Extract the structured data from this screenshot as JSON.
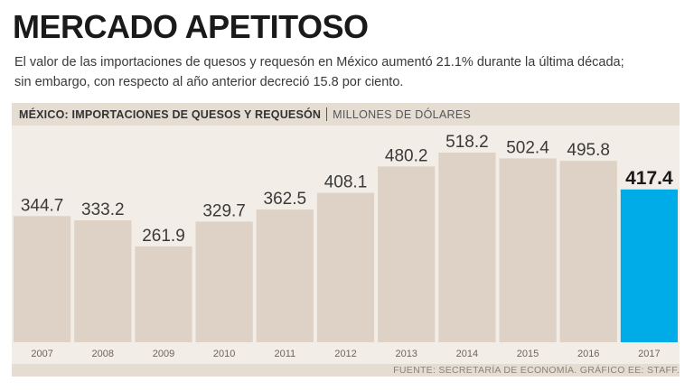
{
  "header": {
    "title": "MERCADO APETITOSO",
    "subtitle_line1": "El valor de las importaciones de quesos y requesón en México aumentó 21.1% durante la última década;",
    "subtitle_line2": "sin embargo, con respecto al año anterior decreció 15.8 por ciento."
  },
  "chart_header": {
    "title": "MÉXICO: IMPORTACIONES DE QUESOS Y REQUESÓN",
    "units": "MILLONES DE DÓLARES"
  },
  "footer": {
    "source": "FUENTE: SECRETARÍA DE ECONOMÍA. GRÁFICO EE: STAFF."
  },
  "colors": {
    "bar": "#ddd2c5",
    "highlight": "#00ace8",
    "label": "#3a3a3a",
    "highlight_label": "#1a1a1a"
  },
  "chart_data": {
    "type": "bar",
    "title": "MÉXICO: IMPORTACIONES DE QUESOS Y REQUESÓN",
    "ylabel": "MILLONES DE DÓLARES",
    "xlabel": "",
    "categories": [
      "2007",
      "2008",
      "2009",
      "2010",
      "2011",
      "2012",
      "2013",
      "2014",
      "2015",
      "2016",
      "2017"
    ],
    "values": [
      344.7,
      333.2,
      261.9,
      329.7,
      362.5,
      408.1,
      480.2,
      518.2,
      502.4,
      495.8,
      417.4
    ],
    "labels": [
      "344.7",
      "333.2",
      "261.9",
      "329.7",
      "362.5",
      "408.1",
      "480.2",
      "518.2",
      "502.4",
      "495.8",
      "417.4"
    ],
    "highlight_index": 10,
    "ylim": [
      0,
      518.2
    ],
    "grid": false
  }
}
